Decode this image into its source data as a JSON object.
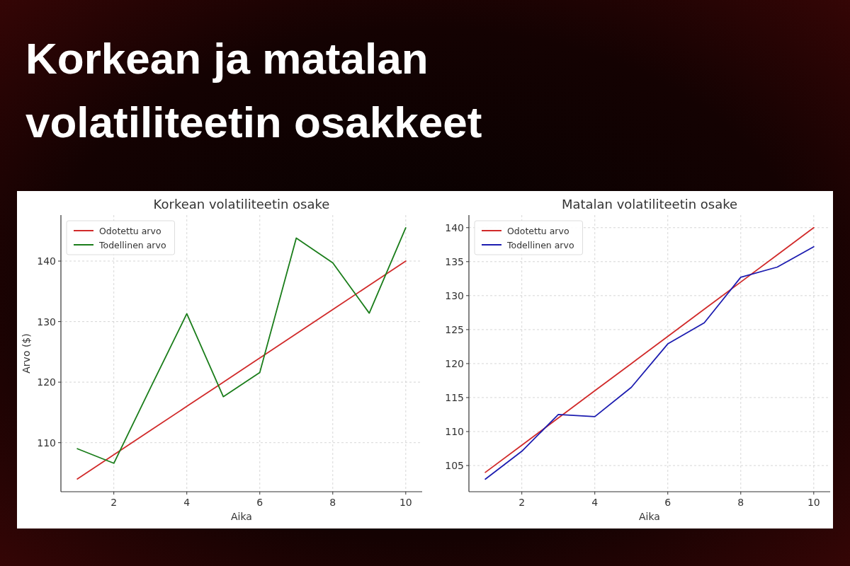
{
  "chart_data": [
    {
      "type": "other",
      "title": "Korkean ja matalan volatiliteetin osakkeet"
    },
    {
      "type": "line",
      "title": "Korkean volatiliteetin osake",
      "xlabel": "Aika",
      "ylabel": "Arvo ($)",
      "x": [
        1,
        2,
        3,
        4,
        5,
        6,
        7,
        8,
        9,
        10
      ],
      "series": [
        {
          "name": "Odotettu arvo",
          "color": "#d12a2a",
          "values": [
            104,
            108,
            112,
            116,
            120,
            124,
            128,
            132,
            136,
            140
          ]
        },
        {
          "name": "Todellinen arvo",
          "color": "#1a7d1a",
          "values": [
            109,
            106.6,
            119,
            131.3,
            117.6,
            121.6,
            143.8,
            139.7,
            131.4,
            145.5
          ]
        }
      ],
      "xlim": [
        0.55,
        10.45
      ],
      "ylim": [
        101.9,
        147.6
      ],
      "xticks": [
        2,
        4,
        6,
        8,
        10
      ],
      "yticks": [
        110,
        120,
        130,
        140
      ],
      "grid": true,
      "legend": "top left"
    },
    {
      "type": "line",
      "title": "Matalan volatiliteetin osake",
      "xlabel": "Aika",
      "x": [
        1,
        2,
        3,
        4,
        5,
        6,
        7,
        8,
        9,
        10
      ],
      "series": [
        {
          "name": "Odotettu arvo",
          "color": "#d12a2a",
          "values": [
            104,
            108,
            112,
            116,
            120,
            124,
            128,
            132,
            136,
            140
          ]
        },
        {
          "name": "Todellinen arvo",
          "color": "#1c1cb0",
          "values": [
            103,
            107.1,
            112.5,
            112.2,
            116.5,
            122.9,
            126,
            132.7,
            134.2,
            137.2
          ]
        }
      ],
      "xlim": [
        0.55,
        10.45
      ],
      "ylim": [
        101.15,
        141.85
      ],
      "xticks": [
        2,
        4,
        6,
        8,
        10
      ],
      "yticks": [
        105,
        110,
        115,
        120,
        125,
        130,
        135,
        140
      ],
      "grid": true,
      "legend": "top left"
    }
  ]
}
